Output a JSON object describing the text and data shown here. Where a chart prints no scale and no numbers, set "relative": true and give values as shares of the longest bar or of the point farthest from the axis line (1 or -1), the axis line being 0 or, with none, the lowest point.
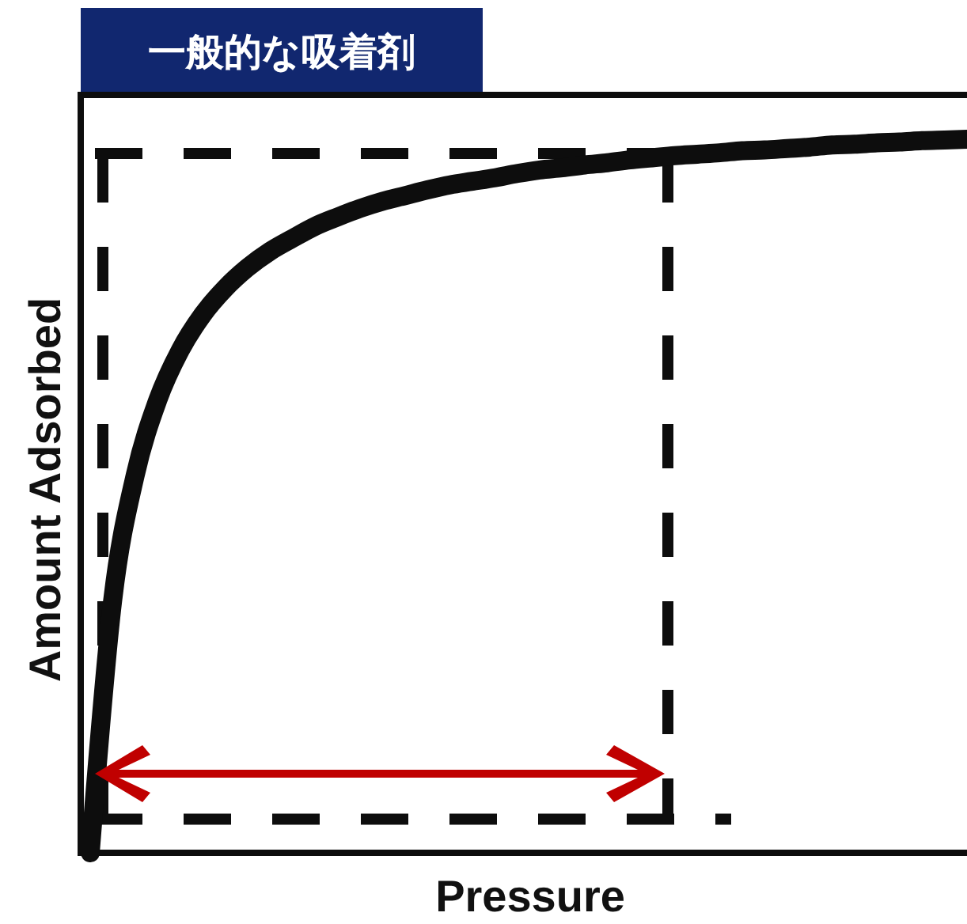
{
  "chart_data": {
    "type": "line",
    "title": "一般的な吸着剤",
    "xlabel": "Pressure",
    "ylabel": "Amount Adsorbed",
    "relative": true,
    "color": "#0d0d0d",
    "categories": [
      null,
      null,
      null,
      null,
      null,
      null,
      null,
      null,
      null,
      null,
      null,
      null,
      null,
      null,
      null,
      null,
      null,
      null,
      null,
      null,
      null,
      null,
      null,
      null,
      null,
      null,
      null,
      null,
      null,
      null,
      null,
      null,
      null,
      null,
      null,
      null,
      null,
      null,
      null,
      null
    ],
    "values": [
      0,
      0.354,
      0.529,
      0.634,
      0.704,
      0.754,
      0.791,
      0.82,
      0.843,
      0.861,
      0.878,
      0.891,
      0.903,
      0.913,
      0.921,
      0.929,
      0.936,
      0.941,
      0.946,
      0.952,
      0.957,
      0.96,
      0.964,
      0.967,
      0.971,
      0.974,
      0.977,
      0.979,
      0.981,
      0.984,
      0.985,
      0.987,
      0.989,
      0.992,
      0.993,
      0.995,
      0.996,
      0.998,
      0.999,
      1
    ],
    "ref_lines": [
      {
        "axis": "y",
        "value": 0.98,
        "color": "#0d0d0d",
        "line_style": "dashed"
      },
      {
        "axis": "y",
        "value": 0.047,
        "color": "#0d0d0d",
        "line_style": "dashed"
      }
    ]
  }
}
